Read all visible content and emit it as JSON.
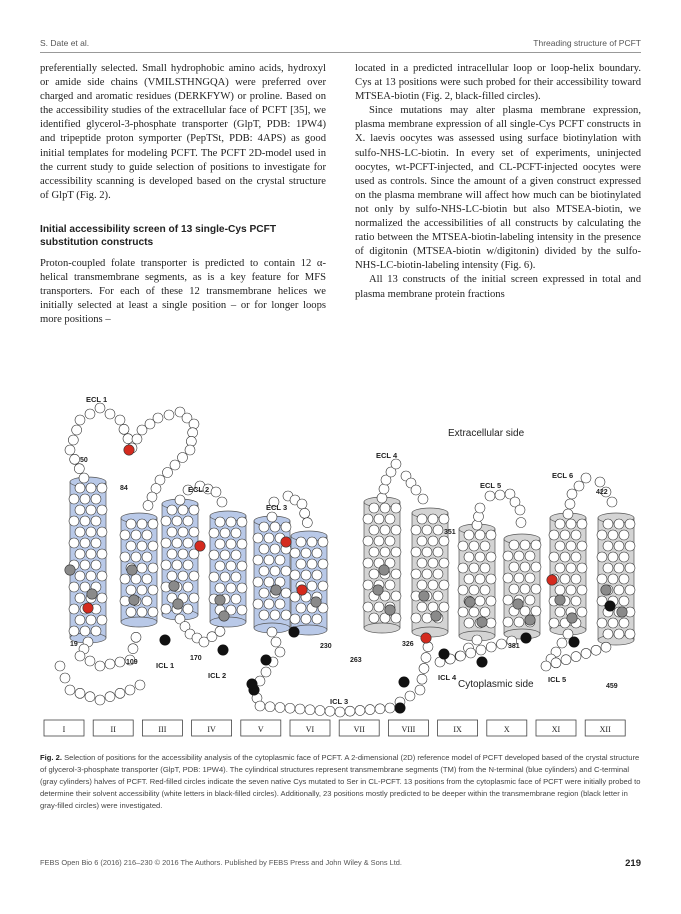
{
  "header": {
    "left": "S. Date et al.",
    "right": "Threading structure of PCFT"
  },
  "left_column": {
    "p1": "preferentially selected. Small hydrophobic amino acids, hydroxyl or amide side chains (VMILSTHNGQA) were preferred over charged and aromatic residues (DERKFYW) or proline. Based on the accessibility studies of the extracellular face of PCFT [35], we identified glycerol-3-phosphate transporter (GlpT, PDB: 1PW4) and tripeptide proton symporter (PepTSt, PDB: 4APS) as good initial templates for modeling PCFT. The PCFT 2D-model used in the current study to guide selection of positions to investigate for accessibility scanning is developed based on the crystal structure of GlpT (Fig. 2).",
    "section_title": "Initial accessibility screen of 13 single-Cys PCFT substitution constructs",
    "p2": "Proton-coupled folate transporter is predicted to contain 12 α-helical transmembrane segments, as is a key feature for MFS transporters. For each of these 12 transmembrane helices we initially selected at least a single position – or for longer loops more positions –"
  },
  "right_column": {
    "p1": "located in a predicted intracellular loop or loop-helix boundary. Cys at 13 positions were such probed for their accessibility toward MTSEA-biotin (Fig. 2, black-filled circles).",
    "p2": "Since mutations may alter plasma membrane expression, plasma membrane expression of all single-Cys PCFT constructs in X. laevis oocytes was assessed using surface biotinylation with sulfo-NHS-LC-biotin. In every set of experiments, uninjected oocytes, wt-PCFT-injected, and CL-PCFT-injected oocytes were used as controls. Since the amount of a given construct expressed on the plasma membrane will affect how much can be biotinylated not only by sulfo-NHS-LC-biotin but also MTSEA-biotin, we normalized the accessibilities of all constructs by calculating the ratio between the MTSEA-biotin-labeling intensity in the presence of digitonin (MTSEA-biotin w/digitonin) divided by the sulfo-NHS-LC-biotin-labeling intensity (Fig. 6).",
    "p3": "All 13 constructs of the initial screen expressed in total and plasma membrane protein fractions"
  },
  "figure": {
    "extracellular_label": "Extracellular side",
    "cytoplasmic_label": "Cytoplasmic side",
    "loop_labels": [
      "ECL 1",
      "ECL 2",
      "ECL 3",
      "ECL 4",
      "ECL 5",
      "ECL 6",
      "ICL 1",
      "ICL 2",
      "ICL 3",
      "ICL 4",
      "ICL 5"
    ],
    "position_numbers": [
      "50",
      "84",
      "19",
      "109",
      "170",
      "230",
      "263",
      "326",
      "351",
      "381",
      "422",
      "459"
    ],
    "tm_labels": [
      "I",
      "II",
      "III",
      "IV",
      "V",
      "VI",
      "VII",
      "VIII",
      "IX",
      "X",
      "XI",
      "XII"
    ],
    "colors": {
      "n_half": "#b9c9e8",
      "c_half": "#d4d4d4",
      "red_residue": "#d42a1e",
      "black_residue": "#111111",
      "gray_residue": "#8a8a8a"
    }
  },
  "caption": {
    "label": "Fig. 2.",
    "text": "Selection of positions for the accessibility analysis of the cytoplasmic face of PCFT. A 2-dimensional (2D) reference model of PCFT developed based of the crystal structure of glycerol-3-phosphate transporter (GlpT, PDB: 1PW4). The cylindrical structures represent transmembrane segments (TM) from the N-terminal (blue cylinders) and C-terminal (gray cylinders) halves of PCFT. Red-filled circles indicate the seven native Cys mutated to Ser in CL-PCFT. 13 positions from the cytoplasmic face of PCFT were initially probed to determine their solvent accessibility (white letters in black-filled circles). Additionally, 23 positions mostly predicted to be deeper within the transmembrane region (black letter in gray-filled circles) were investigated."
  },
  "footer": {
    "left": "FEBS Open Bio 6 (2016) 216–230 © 2016 The Authors. Published by FEBS Press and John Wiley & Sons Ltd.",
    "page": "219"
  }
}
